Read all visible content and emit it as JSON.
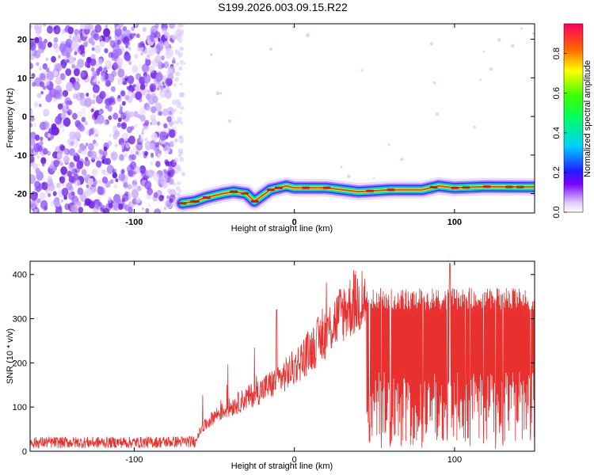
{
  "title": "S199.2026.003.09.15.R22",
  "chart_data": [
    {
      "type": "heatmap",
      "xlabel": "Height of straight line (km)",
      "ylabel": "Frequency (Hz)",
      "xlim": [
        -165,
        150
      ],
      "ylim": [
        -25,
        24
      ],
      "x_ticks": [
        "-100",
        "0",
        "100"
      ],
      "y_ticks": [
        "20",
        "10",
        "0",
        "-10",
        "-20"
      ],
      "colorbar": {
        "label": "Normalized spectral amplitude",
        "range": [
          0,
          0.95
        ],
        "ticks": [
          "0.0",
          "0.2",
          "0.4",
          "0.6",
          "0.8"
        ]
      },
      "noise_region_x": [
        -165,
        -75
      ],
      "ridge": {
        "x": [
          -70,
          -62,
          -55,
          -45,
          -38,
          -30,
          -25,
          -20,
          -15,
          -10,
          -5,
          0,
          20,
          40,
          60,
          80,
          90,
          100,
          120,
          150
        ],
        "y": [
          -22.5,
          -22,
          -21,
          -20,
          -19.5,
          -20,
          -22,
          -20.5,
          -19,
          -18.5,
          -18,
          -18.5,
          -18.5,
          -19.5,
          -19,
          -19,
          -18,
          -18.5,
          -18.2,
          -18.3
        ]
      }
    },
    {
      "type": "line",
      "xlabel": "Height of straight line (km)",
      "ylabel": "SNR (10 * v/v)",
      "xlim": [
        -165,
        150
      ],
      "ylim": [
        0,
        430
      ],
      "x_ticks": [
        "-100",
        "0",
        "100"
      ],
      "y_ticks": [
        "0",
        "100",
        "200",
        "300",
        "400"
      ],
      "series": [
        {
          "color": "#e8302e",
          "x": [
            -165,
            -100,
            -62,
            -58,
            -50,
            -40,
            -30,
            -20,
            -10,
            0,
            10,
            20,
            30,
            40,
            50,
            60,
            80,
            100,
            120,
            150
          ],
          "y": [
            20,
            20,
            22,
            50,
            80,
            100,
            120,
            140,
            160,
            190,
            230,
            270,
            315,
            340,
            340,
            240,
            220,
            220,
            210,
            200
          ]
        }
      ]
    }
  ]
}
